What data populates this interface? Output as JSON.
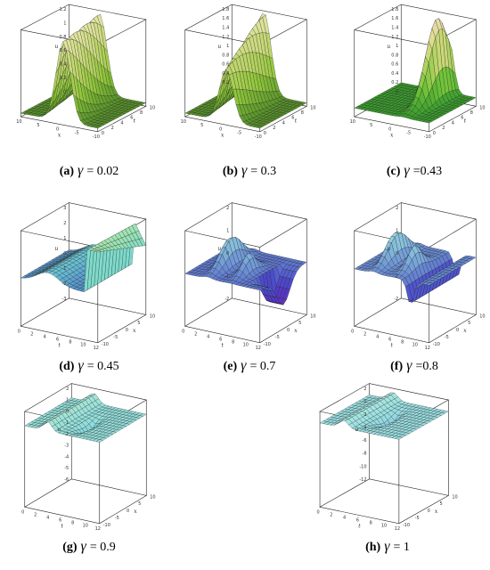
{
  "figure": {
    "panels": [
      {
        "id": "a",
        "label": "(a)",
        "gamma_symbol": "γ",
        "value_text": "= 0.02",
        "u_ticks": [
          "0",
          "0.2",
          "0.4",
          "0.6",
          "0.8",
          "1",
          "1.2"
        ],
        "x_ticks": [
          "10",
          "5",
          "0",
          "-5",
          "-10"
        ],
        "t_ticks": [
          "0",
          "2",
          "4",
          "6",
          "8",
          "10"
        ],
        "x_label": "x",
        "t_label": "t",
        "u_label": "u",
        "x_axis": "x",
        "depth_axis": "t",
        "kind": "ridge",
        "hue": [
          95,
          60
        ]
      },
      {
        "id": "b",
        "label": "(b)",
        "gamma_symbol": "γ",
        "value_text": "= 0.3",
        "u_ticks": [
          "0",
          "0.2",
          "0.4",
          "0.6",
          "0.8",
          "1",
          "1.2",
          "1.4",
          "1.6",
          "1.8"
        ],
        "x_ticks": [
          "10",
          "5",
          "0",
          "-5",
          "-10"
        ],
        "t_ticks": [
          "0",
          "2",
          "4",
          "6",
          "8",
          "10"
        ],
        "x_label": "x",
        "t_label": "t",
        "u_label": "u",
        "x_axis": "x",
        "depth_axis": "t",
        "kind": "ridge2",
        "hue": [
          95,
          60
        ]
      },
      {
        "id": "c",
        "label": "(c)",
        "gamma_symbol": "γ",
        "value_text": "=0.43",
        "u_ticks": [
          "0",
          "0.2",
          "0.4",
          "0.6",
          "0.8",
          "1",
          "1.2",
          "1.4",
          "1.6",
          "1.8"
        ],
        "x_ticks": [
          "10",
          "5",
          "0",
          "-5",
          "-10"
        ],
        "t_ticks": [
          "0",
          "2",
          "4",
          "6",
          "8",
          "10"
        ],
        "x_label": "x",
        "t_label": "t",
        "u_label": "u",
        "x_axis": "x",
        "depth_axis": "t",
        "kind": "peak",
        "hue": [
          120,
          45
        ]
      },
      {
        "id": "d",
        "label": "(d)",
        "gamma_symbol": "γ",
        "value_text": "= 0.45",
        "u_ticks": [
          "-3",
          "-2",
          "-1",
          "0",
          "1",
          "2",
          "3"
        ],
        "x_ticks": [
          "0",
          "2",
          "4",
          "6",
          "8",
          "10",
          "12"
        ],
        "t_ticks": [
          "-10",
          "-5",
          "0",
          "5",
          "10"
        ],
        "x_label": "t",
        "t_label": "x",
        "u_label": "u",
        "x_axis": "t",
        "depth_axis": "x",
        "kind": "wall",
        "hue": [
          300,
          120
        ]
      },
      {
        "id": "e",
        "label": "(e)",
        "gamma_symbol": "γ",
        "value_text": "= 0.7",
        "u_ticks": [
          "-2",
          "-1",
          "0",
          "1",
          "2"
        ],
        "x_ticks": [
          "0",
          "2",
          "4",
          "6",
          "8",
          "10",
          "12"
        ],
        "t_ticks": [
          "-10",
          "-5",
          "0",
          "5",
          "10"
        ],
        "x_label": "t",
        "t_label": "x",
        "u_label": "u",
        "x_axis": "t",
        "depth_axis": "x",
        "kind": "wave",
        "hue": [
          290,
          175
        ]
      },
      {
        "id": "f",
        "label": "(f)",
        "gamma_symbol": "γ",
        "value_text": "=0.8",
        "u_ticks": [
          "-2",
          "-1",
          "0",
          "1",
          "2"
        ],
        "x_ticks": [
          "0",
          "2",
          "4",
          "6",
          "8",
          "10",
          "12"
        ],
        "t_ticks": [
          "-10",
          "-5",
          "0",
          "5",
          "10"
        ],
        "x_label": "t",
        "t_label": "x",
        "u_label": "u",
        "x_axis": "t",
        "depth_axis": "x",
        "kind": "wave2",
        "hue": [
          290,
          175
        ]
      },
      {
        "id": "g",
        "label": "(g)",
        "gamma_symbol": "γ",
        "value_text": "= 0.9",
        "u_ticks": [
          "-6",
          "-5",
          "-4",
          "-3",
          "-2",
          "-1",
          "0",
          "1",
          "2"
        ],
        "x_ticks": [
          "0",
          "2",
          "4",
          "6",
          "8",
          "10",
          "12"
        ],
        "t_ticks": [
          "-10",
          "-5",
          "0",
          "5",
          "10"
        ],
        "x_label": "t",
        "t_label": "x",
        "u_label": "u",
        "x_axis": "t",
        "depth_axis": "x",
        "kind": "cliff",
        "hue": [
          270,
          160
        ]
      },
      {
        "id": "h",
        "label": "(h)",
        "gamma_symbol": "γ",
        "value_text": "= 1",
        "u_ticks": [
          "-12",
          "-10",
          "-8",
          "-6",
          "-4",
          "-2",
          "0",
          "2"
        ],
        "x_ticks": [
          "0",
          "2",
          "4",
          "6",
          "8",
          "10",
          "12"
        ],
        "t_ticks": [
          "-10",
          "-5",
          "0",
          "5",
          "10"
        ],
        "x_label": "t",
        "t_label": "x",
        "u_label": "u",
        "x_axis": "t",
        "depth_axis": "x",
        "kind": "cliff2",
        "hue": [
          270,
          170
        ]
      }
    ]
  }
}
